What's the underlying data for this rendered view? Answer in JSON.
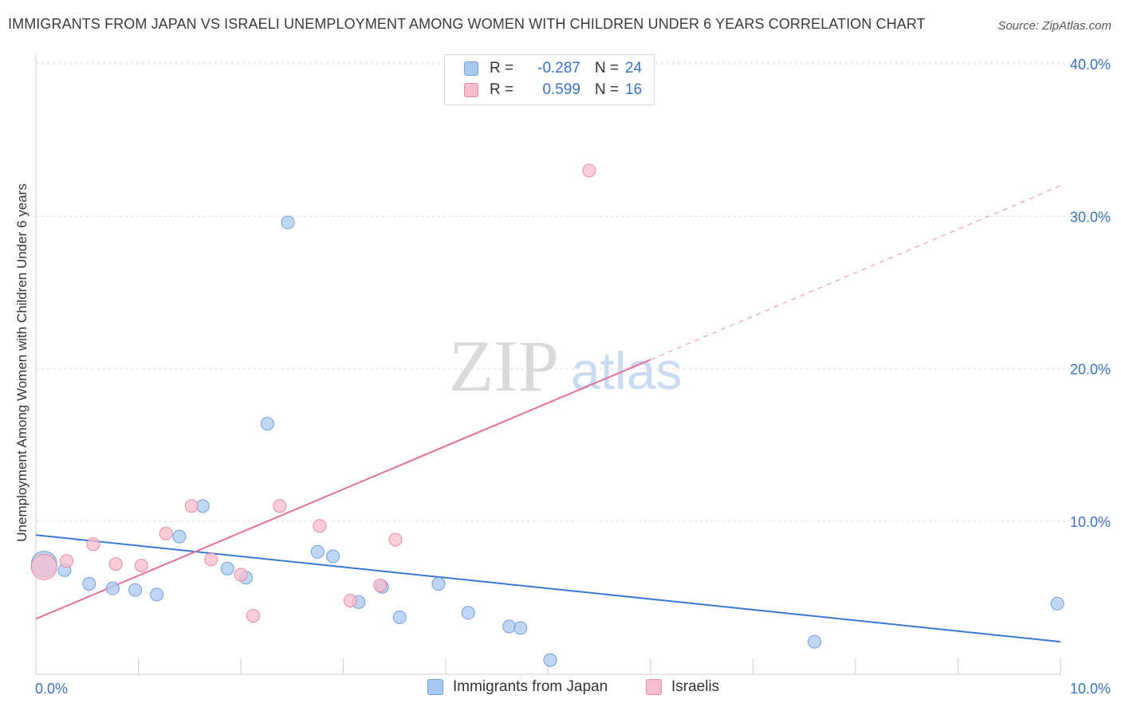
{
  "header": {
    "title": "IMMIGRANTS FROM JAPAN VS ISRAELI UNEMPLOYMENT AMONG WOMEN WITH CHILDREN UNDER 6 YEARS CORRELATION CHART",
    "source": "Source: ZipAtlas.com"
  },
  "watermark": {
    "zip": "ZIP",
    "atlas": "atlas"
  },
  "legend": {
    "r_label": "R =",
    "n_label": "N =",
    "series": [
      {
        "name": "Immigrants from Japan",
        "r": "-0.287",
        "n": "24",
        "color": "#a9c8f0",
        "stroke": "#6f9fd8"
      },
      {
        "name": "Israelis",
        "r": "0.599",
        "n": "16",
        "color": "#f7bccd",
        "stroke": "#e58aa5"
      }
    ]
  },
  "chart_data": {
    "type": "scatter",
    "title": "IMMIGRANTS FROM JAPAN VS ISRAELI UNEMPLOYMENT AMONG WOMEN WITH CHILDREN UNDER 6 YEARS CORRELATION CHART",
    "xlabel": "",
    "ylabel": "Unemployment Among Women with Children Under 6 years",
    "xlim": [
      0,
      10
    ],
    "ylim": [
      0,
      41
    ],
    "x_tick_labels": [
      "0.0%",
      "10.0%"
    ],
    "y_ticks": [
      10,
      20,
      30,
      40
    ],
    "y_tick_labels": [
      "10.0%",
      "20.0%",
      "30.0%",
      "40.0%"
    ],
    "grid": true,
    "series": [
      {
        "name": "Immigrants from Japan",
        "color": "#a9c8f0",
        "stroke": "#6f9fd8",
        "points": [
          {
            "x": 0.08,
            "y": 7.2,
            "size": "large"
          },
          {
            "x": 0.28,
            "y": 6.8
          },
          {
            "x": 0.52,
            "y": 5.9
          },
          {
            "x": 0.75,
            "y": 5.6
          },
          {
            "x": 0.97,
            "y": 5.5
          },
          {
            "x": 1.18,
            "y": 5.2
          },
          {
            "x": 1.4,
            "y": 9.0
          },
          {
            "x": 1.63,
            "y": 11.0
          },
          {
            "x": 1.87,
            "y": 6.9
          },
          {
            "x": 2.05,
            "y": 6.3
          },
          {
            "x": 2.26,
            "y": 16.4
          },
          {
            "x": 2.46,
            "y": 29.6
          },
          {
            "x": 2.75,
            "y": 8.0
          },
          {
            "x": 2.9,
            "y": 7.7
          },
          {
            "x": 3.15,
            "y": 4.7
          },
          {
            "x": 3.38,
            "y": 5.7
          },
          {
            "x": 3.55,
            "y": 3.7
          },
          {
            "x": 3.93,
            "y": 5.9
          },
          {
            "x": 4.22,
            "y": 4.0
          },
          {
            "x": 4.62,
            "y": 3.1
          },
          {
            "x": 4.73,
            "y": 3.0
          },
          {
            "x": 5.02,
            "y": 0.9
          },
          {
            "x": 7.6,
            "y": 2.1
          },
          {
            "x": 9.97,
            "y": 4.6
          }
        ]
      },
      {
        "name": "Israelis",
        "color": "#f7bccd",
        "stroke": "#e58aa5",
        "points": [
          {
            "x": 0.08,
            "y": 7.0,
            "size": "large"
          },
          {
            "x": 0.3,
            "y": 7.4
          },
          {
            "x": 0.56,
            "y": 8.5
          },
          {
            "x": 0.78,
            "y": 7.2
          },
          {
            "x": 1.03,
            "y": 7.1
          },
          {
            "x": 1.27,
            "y": 9.2
          },
          {
            "x": 1.52,
            "y": 11.0
          },
          {
            "x": 1.71,
            "y": 7.5
          },
          {
            "x": 2.0,
            "y": 6.5
          },
          {
            "x": 2.12,
            "y": 3.8
          },
          {
            "x": 2.38,
            "y": 11.0
          },
          {
            "x": 2.77,
            "y": 9.7
          },
          {
            "x": 3.07,
            "y": 4.8
          },
          {
            "x": 3.36,
            "y": 5.8
          },
          {
            "x": 3.51,
            "y": 8.8
          },
          {
            "x": 5.4,
            "y": 33.0
          }
        ]
      }
    ],
    "trendlines": [
      {
        "series": "Immigrants from Japan",
        "color": "#3a78d4",
        "x0": 0,
        "y0": 9.1,
        "x1": 10,
        "y1": 2.1,
        "dashed_from": null
      },
      {
        "series": "Israelis",
        "color": "#e0709a",
        "x0": 0,
        "y0": 3.6,
        "x1": 6.0,
        "y1": 20.6,
        "dash_x1": 10,
        "dash_y1": 32.0
      }
    ]
  }
}
